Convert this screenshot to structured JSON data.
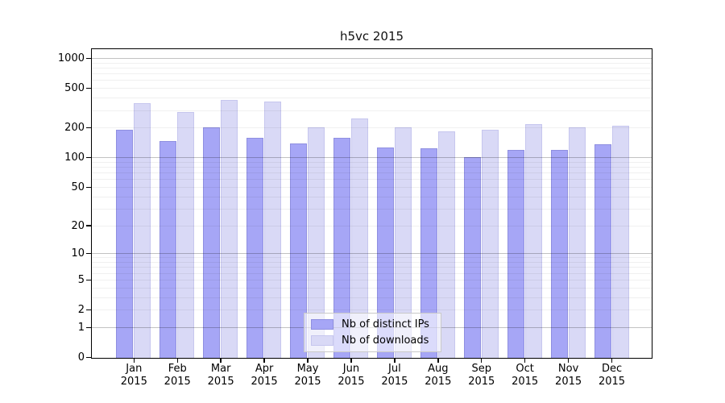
{
  "title": "h5vc 2015",
  "chart_data": {
    "type": "bar",
    "title": "h5vc 2015",
    "xlabel": "",
    "ylabel": "",
    "yscale": "log1p",
    "ylim": [
      0,
      1000
    ],
    "yticks": [
      0,
      1,
      2,
      5,
      10,
      20,
      50,
      100,
      200,
      500,
      1000
    ],
    "grid": "on",
    "legend_position": "inside-bottom-center",
    "categories": [
      "Jan 2015",
      "Feb 2015",
      "Mar 2015",
      "Apr 2015",
      "May 2015",
      "Jun 2015",
      "Jul 2015",
      "Aug 2015",
      "Sep 2015",
      "Oct 2015",
      "Nov 2015",
      "Dec 2015"
    ],
    "series": [
      {
        "name": "Nb of distinct IPs",
        "color": "#a6a6f6",
        "border_color": "#8f8fe0",
        "values": [
          192,
          150,
          206,
          162,
          141,
          160,
          127,
          126,
          103,
          122,
          122,
          139
        ]
      },
      {
        "name": "Nb of downloads",
        "color": "#d9d9f6",
        "border_color": "#c6c6ee",
        "values": [
          360,
          290,
          386,
          370,
          203,
          250,
          206,
          186,
          195,
          221,
          203,
          211
        ]
      }
    ]
  },
  "axis_style": {
    "spine_color": "#000000",
    "major_grid_color": "#c2c2c2",
    "minor_grid_color": "#efefef"
  }
}
